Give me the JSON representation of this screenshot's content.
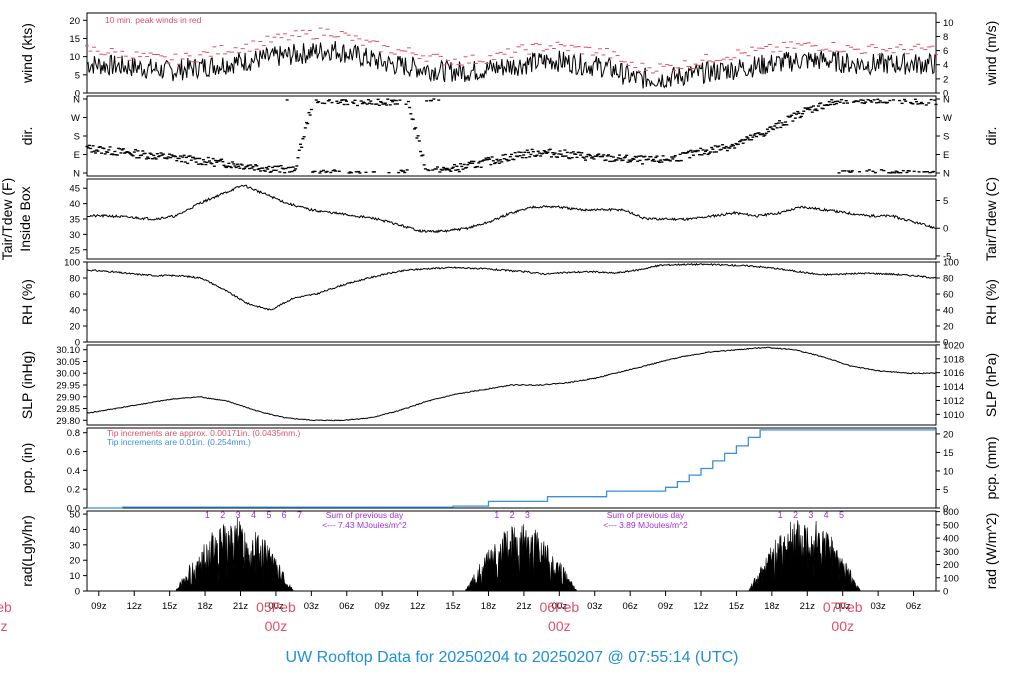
{
  "chart_data": {
    "type": "line",
    "title": "UW Rooftop Data for 20250204  to  20250207 @ 07:55:14  (UTC)",
    "colors": {
      "accent_red": "#e0506a",
      "accent_blue": "#3a8fd6",
      "purple": "#a030e0",
      "text": "#1f8fd6"
    },
    "x_axis": {
      "hours_since_start_range": [
        0,
        71.9
      ],
      "tick_labels": [
        "09z",
        "12z",
        "15z",
        "18z",
        "21z",
        "00z",
        "03z",
        "06z",
        "09z",
        "12z",
        "15z",
        "18z",
        "21z",
        "00z",
        "03z",
        "06z",
        "09z",
        "12z",
        "15z",
        "18z",
        "21z",
        "00z",
        "03z",
        "06z"
      ],
      "day_labels": [
        {
          "top": "eb",
          "bottom": "z"
        },
        {
          "top": "05Feb",
          "bottom": "00z"
        },
        {
          "top": "06Feb",
          "bottom": "00z"
        },
        {
          "top": "07Feb",
          "bottom": "00z"
        }
      ]
    },
    "panels": [
      {
        "id": "wind",
        "ylabel_left": "wind (kts)",
        "ylabel_right": "wind (m/s)",
        "left_ticks": [
          "0",
          "5",
          "10",
          "15",
          "20"
        ],
        "right_ticks": [
          "0",
          "2",
          "4",
          "6",
          "8",
          "10"
        ],
        "ylim": [
          0,
          22
        ],
        "note": "10 min. peak winds in red",
        "mean_kts": [
          8,
          7.5,
          7,
          6,
          7,
          8,
          9,
          10,
          11,
          12,
          10,
          8,
          7,
          6,
          6,
          7,
          8,
          9,
          8,
          7,
          4,
          4,
          5,
          6,
          7,
          8,
          9,
          9,
          8,
          8,
          8,
          8
        ],
        "peak_kts": [
          12,
          11,
          10,
          9,
          10,
          12,
          13,
          15,
          16,
          17,
          14,
          12,
          11,
          9,
          9,
          10,
          12,
          13,
          12,
          11,
          7,
          7,
          8,
          10,
          11,
          12,
          13,
          13,
          12,
          12,
          12,
          12
        ]
      },
      {
        "id": "dir",
        "ylabel_left": "dir.",
        "ylabel_right": "dir.",
        "left_ticks": [
          "N",
          "E",
          "S",
          "W",
          "N"
        ],
        "right_ticks": [
          "N",
          "E",
          "S",
          "W",
          "N"
        ],
        "deg_series": [
          120,
          110,
          100,
          90,
          80,
          70,
          60,
          50,
          40,
          30,
          20,
          10,
          360,
          355,
          350,
          345,
          350,
          355,
          5,
          15,
          30,
          50,
          70,
          90,
          100,
          95,
          85,
          75,
          70,
          65,
          60,
          70,
          90,
          110,
          130,
          160,
          200,
          250,
          300,
          330,
          350,
          355,
          360,
          355,
          350,
          350
        ]
      },
      {
        "id": "temp",
        "ylabel_left": "Tair/Tdew (F)",
        "ylabel_left2": "Inside Box",
        "ylabel_right": "Tair/Tdew (C)",
        "left_ticks": [
          "25",
          "30",
          "35",
          "40",
          "45"
        ],
        "right_ticks": [
          "-5",
          "0",
          "5"
        ],
        "ylim": [
          22,
          48
        ],
        "values_f": [
          36,
          36,
          35.5,
          35,
          36,
          40,
          43,
          46,
          43,
          40,
          38,
          37,
          36,
          35,
          33,
          31,
          31,
          32,
          34,
          37,
          39,
          39,
          38,
          38,
          38,
          35,
          35,
          35,
          36,
          37,
          36,
          37,
          39,
          38,
          37,
          36,
          36,
          34,
          32
        ]
      },
      {
        "id": "rh",
        "ylabel_left": "RH (%)",
        "ylabel_right": "RH (%)",
        "left_ticks": [
          "0",
          "20",
          "40",
          "60",
          "80",
          "100"
        ],
        "right_ticks": [
          "0",
          "20",
          "40",
          "60",
          "80",
          "100"
        ],
        "ylim": [
          0,
          100
        ],
        "values": [
          90,
          88,
          85,
          83,
          83,
          80,
          65,
          48,
          40,
          55,
          60,
          70,
          78,
          85,
          90,
          92,
          93,
          92,
          90,
          88,
          85,
          87,
          88,
          86,
          90,
          96,
          97,
          97,
          96,
          95,
          92,
          88,
          84,
          85,
          86,
          85,
          83,
          80
        ]
      },
      {
        "id": "slp",
        "ylabel_left": "SLP (inHg)",
        "ylabel_right": "SLP (hPa)",
        "left_ticks": [
          "29.80",
          "29.85",
          "29.90",
          "29.95",
          "30.00",
          "30.05",
          "30.10"
        ],
        "right_ticks": [
          "1010",
          "1012",
          "1014",
          "1016",
          "1018",
          "1020"
        ],
        "ylim": [
          29.78,
          30.12
        ],
        "values": [
          29.83,
          29.85,
          29.87,
          29.89,
          29.9,
          29.88,
          29.84,
          29.81,
          29.8,
          29.8,
          29.81,
          29.84,
          29.88,
          29.91,
          29.93,
          29.95,
          29.95,
          29.96,
          29.98,
          30.01,
          30.04,
          30.07,
          30.09,
          30.1,
          30.11,
          30.1,
          30.07,
          30.03,
          30.01,
          30.0,
          30.0
        ]
      },
      {
        "id": "pcp",
        "ylabel_left": "pcp. (in)",
        "ylabel_right": "pcp. (mm)",
        "left_ticks": [
          "0.0",
          "0.2",
          "0.4",
          "0.6",
          "0.8"
        ],
        "right_ticks": [
          "0",
          "5",
          "10",
          "15",
          "20"
        ],
        "ylim": [
          0,
          0.85
        ],
        "note_red": "Tip increments are approx. 0.00171in. (0.0435mm.)",
        "note_blue": "Tip increments are 0.01in. (0.254mm.)",
        "steps": [
          [
            0,
            0.0
          ],
          [
            3,
            0.01
          ],
          [
            30,
            0.01
          ],
          [
            31,
            0.02
          ],
          [
            33,
            0.02
          ],
          [
            34,
            0.07
          ],
          [
            38,
            0.07
          ],
          [
            39,
            0.12
          ],
          [
            43,
            0.12
          ],
          [
            44,
            0.18
          ],
          [
            48,
            0.18
          ],
          [
            49,
            0.22
          ],
          [
            50,
            0.28
          ],
          [
            51,
            0.35
          ],
          [
            52,
            0.42
          ],
          [
            53,
            0.5
          ],
          [
            54,
            0.58
          ],
          [
            55,
            0.66
          ],
          [
            56,
            0.75
          ],
          [
            57,
            0.83
          ],
          [
            71.9,
            0.83
          ]
        ]
      },
      {
        "id": "rad",
        "ylabel_left": "rad(Lgly/hr)",
        "ylabel_right": "rad (W/m^2)",
        "left_ticks": [
          "0",
          "10",
          "20",
          "30",
          "40",
          "50"
        ],
        "right_ticks": [
          "0",
          "100",
          "200",
          "300",
          "400",
          "500",
          "600"
        ],
        "ylim": [
          0,
          52
        ],
        "days": [
          {
            "start": 7.5,
            "end": 17.5,
            "peak": 48,
            "markers": [
              "1",
              "2",
              "3",
              "4",
              "5",
              "6",
              "7"
            ]
          },
          {
            "start": 32,
            "end": 41.5,
            "peak": 44,
            "markers": [
              "1",
              "2",
              "3"
            ]
          },
          {
            "start": 56,
            "end": 65.5,
            "peak": 50,
            "markers": [
              "1",
              "2",
              "3",
              "4",
              "5"
            ]
          }
        ],
        "notes": [
          {
            "line1": "Sum of previous day",
            "line2": "<--- 7.43 MJoules/m^2"
          },
          {
            "line1": "Sum of previous day",
            "line2": "<--- 3.89 MJoules/m^2"
          }
        ]
      }
    ]
  }
}
